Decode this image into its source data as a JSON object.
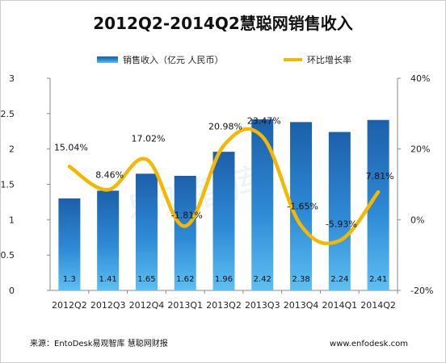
{
  "chart_data": {
    "type": "bar",
    "title": "2012Q2-2014Q2慧聪网销售收入",
    "categories": [
      "2012Q2",
      "2012Q3",
      "2012Q4",
      "2013Q1",
      "2013Q2",
      "2013Q3",
      "2013Q4",
      "2014Q1",
      "2014Q2"
    ],
    "series": [
      {
        "name": "销售收入（亿元  人民币）",
        "type": "bar",
        "axis": "left",
        "values": [
          1.3,
          1.41,
          1.65,
          1.62,
          1.96,
          2.42,
          2.38,
          2.24,
          2.41
        ],
        "labels": [
          "1.3",
          "1.41",
          "1.65",
          "1.62",
          "1.96",
          "2.42",
          "2.38",
          "2.24",
          "2.41"
        ],
        "color": "#2a7fcc"
      },
      {
        "name": "环比增长率",
        "type": "line",
        "axis": "right",
        "values": [
          15.04,
          8.46,
          17.02,
          -1.81,
          20.98,
          23.47,
          -1.65,
          -5.93,
          7.81
        ],
        "labels": [
          "15.04%",
          "8.46%",
          "17.02%",
          "-1.81%",
          "20.98%",
          "23.47%",
          "-1.65%",
          "-5.93%",
          "7.81%"
        ],
        "color": "#f5b800"
      }
    ],
    "y_left": {
      "range": [
        0,
        3
      ],
      "ticks": [
        "0",
        "0.5",
        "1",
        "1.5",
        "2",
        "2.5",
        "3"
      ]
    },
    "y_right": {
      "range": [
        -20,
        40
      ],
      "ticks": [
        "-20%",
        "0%",
        "20%",
        "40%"
      ]
    },
    "grid": false,
    "legend": "top"
  },
  "watermark": "易观智库",
  "footer": {
    "source": "来源：EntoDesk易观智库 慧聪网财报",
    "site": "www.enfodesk.com"
  }
}
